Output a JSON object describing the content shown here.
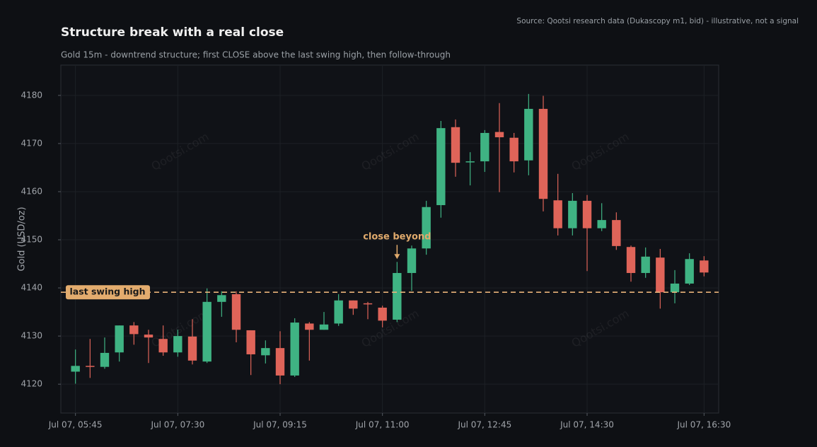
{
  "chart_data": {
    "type": "candlestick",
    "title": "Structure break with a real close",
    "subtitle": "Gold 15m - downtrend structure; first CLOSE above the last swing high, then follow-through",
    "source": "Source: Qootsi research data (Dukascopy m1, bid) - illustrative, not a signal",
    "y_label": "Gold (USD/oz)",
    "watermark": "Qootsi.com",
    "x": [
      "Jul 07, 05:45",
      "Jul 07, 06:00",
      "Jul 07, 06:15",
      "Jul 07, 06:30",
      "Jul 07, 06:45",
      "Jul 07, 07:00",
      "Jul 07, 07:15",
      "Jul 07, 07:30",
      "Jul 07, 07:45",
      "Jul 07, 08:00",
      "Jul 07, 08:15",
      "Jul 07, 08:30",
      "Jul 07, 08:45",
      "Jul 07, 09:00",
      "Jul 07, 09:15",
      "Jul 07, 09:30",
      "Jul 07, 09:45",
      "Jul 07, 10:00",
      "Jul 07, 10:15",
      "Jul 07, 10:30",
      "Jul 07, 10:45",
      "Jul 07, 11:00",
      "Jul 07, 11:15",
      "Jul 07, 11:30",
      "Jul 07, 11:45",
      "Jul 07, 12:00",
      "Jul 07, 12:15",
      "Jul 07, 12:30",
      "Jul 07, 12:45",
      "Jul 07, 13:00",
      "Jul 07, 13:15",
      "Jul 07, 13:30",
      "Jul 07, 13:45",
      "Jul 07, 14:00",
      "Jul 07, 14:15",
      "Jul 07, 14:30",
      "Jul 07, 14:45",
      "Jul 07, 15:00",
      "Jul 07, 15:15",
      "Jul 07, 15:30",
      "Jul 07, 15:45",
      "Jul 07, 16:00",
      "Jul 07, 16:15",
      "Jul 07, 16:30"
    ],
    "open": [
      4122.6,
      4123.8,
      4123.6,
      4126.6,
      4132.2,
      4130.3,
      4129.4,
      4126.6,
      4129.9,
      4124.7,
      4137.1,
      4138.7,
      4131.2,
      4126.0,
      4127.5,
      4121.8,
      4132.6,
      4131.3,
      4132.6,
      4137.4,
      4136.8,
      4135.9,
      4133.4,
      4143.1,
      4148.2,
      4157.2,
      4173.4,
      4166.1,
      4166.3,
      4172.4,
      4171.2,
      4166.5,
      4177.2,
      4158.2,
      4152.4,
      4158.1,
      4152.4,
      4154.1,
      4148.5,
      4143.1,
      4146.3,
      4139.1,
      4140.9,
      4145.7
    ],
    "high": [
      4127.2,
      4129.4,
      4129.7,
      4132.2,
      4132.9,
      4131.3,
      4132.2,
      4131.3,
      4133.5,
      4139.9,
      4139.3,
      4139.3,
      4131.2,
      4129.1,
      4131.0,
      4133.7,
      4132.9,
      4135.0,
      4138.7,
      4137.4,
      4137.1,
      4136.3,
      4145.4,
      4148.8,
      4158.1,
      4174.7,
      4175.0,
      4168.2,
      4172.8,
      4178.4,
      4172.2,
      4180.3,
      4179.9,
      4163.7,
      4159.7,
      4159.3,
      4157.6,
      4155.7,
      4148.8,
      4148.4,
      4148.1,
      4143.7,
      4147.2,
      4146.6
    ],
    "low": [
      4120.1,
      4121.3,
      4123.2,
      4124.7,
      4128.2,
      4124.4,
      4125.9,
      4125.7,
      4124.1,
      4124.4,
      4134.0,
      4128.7,
      4121.9,
      4124.3,
      4120.0,
      4121.5,
      4124.9,
      4131.3,
      4132.1,
      4134.4,
      4133.5,
      4131.8,
      4132.9,
      4139.4,
      4146.9,
      4154.6,
      4163.1,
      4161.3,
      4164.1,
      4159.9,
      4164.0,
      4163.4,
      4155.9,
      4150.9,
      4150.9,
      4143.5,
      4151.8,
      4147.9,
      4141.3,
      4142.1,
      4135.7,
      4136.8,
      4140.6,
      4142.4
    ],
    "close": [
      4123.8,
      4123.6,
      4126.5,
      4132.2,
      4130.4,
      4129.7,
      4126.6,
      4130.0,
      4124.9,
      4137.1,
      4138.5,
      4131.3,
      4126.2,
      4127.5,
      4121.8,
      4132.8,
      4131.3,
      4132.4,
      4137.4,
      4135.7,
      4136.6,
      4133.2,
      4143.1,
      4148.2,
      4156.8,
      4173.2,
      4166.0,
      4166.3,
      4172.2,
      4171.3,
      4166.3,
      4177.2,
      4158.5,
      4152.4,
      4158.1,
      4152.4,
      4154.1,
      4148.7,
      4143.1,
      4146.5,
      4139.1,
      4140.9,
      4146.0,
      4143.2
    ],
    "up_color": "#3fb383",
    "down_color": "#df6459",
    "xlim": [
      "Jul 07, 05:30",
      "Jul 07, 16:45"
    ],
    "xticks": [
      "Jul 07, 05:45",
      "Jul 07, 07:30",
      "Jul 07, 09:15",
      "Jul 07, 11:00",
      "Jul 07, 12:45",
      "Jul 07, 14:30",
      "Jul 07, 16:30"
    ],
    "ylim": [
      4114,
      4186.3
    ],
    "yticks": [
      4120,
      4130,
      4140,
      4150,
      4160,
      4170,
      4180
    ],
    "grid": true,
    "reference_line": {
      "value": 4139.1,
      "label": "last swing high",
      "color": "#e8b27a"
    },
    "annotation": {
      "text": "close beyond",
      "x": "Jul 07, 11:15",
      "y": 4146,
      "color": "#e0aa6c"
    }
  }
}
